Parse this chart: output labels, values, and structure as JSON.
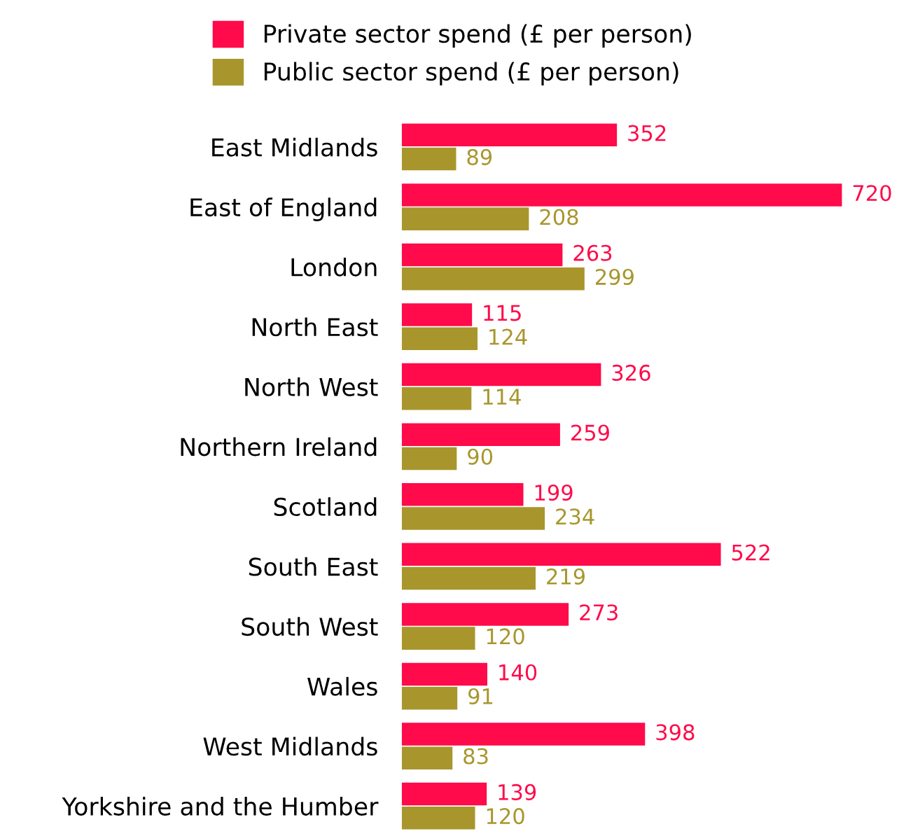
{
  "chart_data": {
    "type": "bar",
    "orientation": "horizontal",
    "categories": [
      "East Midlands",
      "East of England",
      "London",
      "North East",
      "North West",
      "Northern Ireland",
      "Scotland",
      "South East",
      "South West",
      "Wales",
      "West Midlands",
      "Yorkshire and the Humber"
    ],
    "series": [
      {
        "name": "Private sector spend (£ per person)",
        "color": "#ff0a4a",
        "values": [
          352,
          720,
          263,
          115,
          326,
          259,
          199,
          522,
          273,
          140,
          398,
          139
        ]
      },
      {
        "name": "Public sector spend (£ per person)",
        "color": "#a8962c",
        "values": [
          89,
          208,
          299,
          124,
          114,
          90,
          234,
          219,
          120,
          91,
          83,
          120
        ]
      }
    ],
    "data_labels": true,
    "legend": "top left",
    "grid": false
  }
}
